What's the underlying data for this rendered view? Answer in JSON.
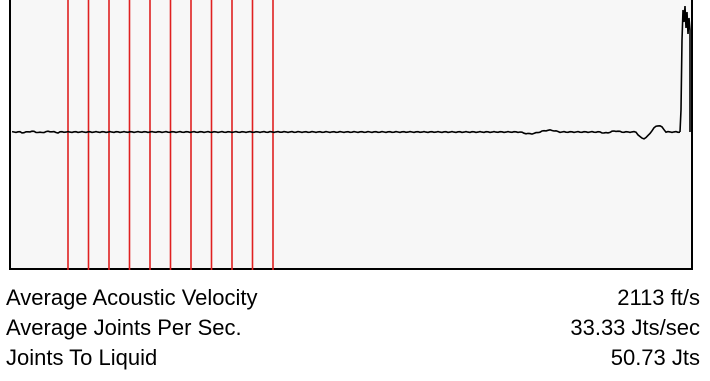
{
  "colors": {
    "trace": "#000000",
    "joint_markers": "#e02020",
    "plot_background": "#f7f7f7",
    "frame": "#000000"
  },
  "joint_marker_count": 11,
  "readouts": [
    {
      "label": "Average Acoustic Velocity",
      "value": "2113 ft/s"
    },
    {
      "label": "Average Joints Per Sec.",
      "value": "33.33 Jts/sec"
    },
    {
      "label": "Joints To Liquid",
      "value": "50.73 Jts"
    }
  ]
}
